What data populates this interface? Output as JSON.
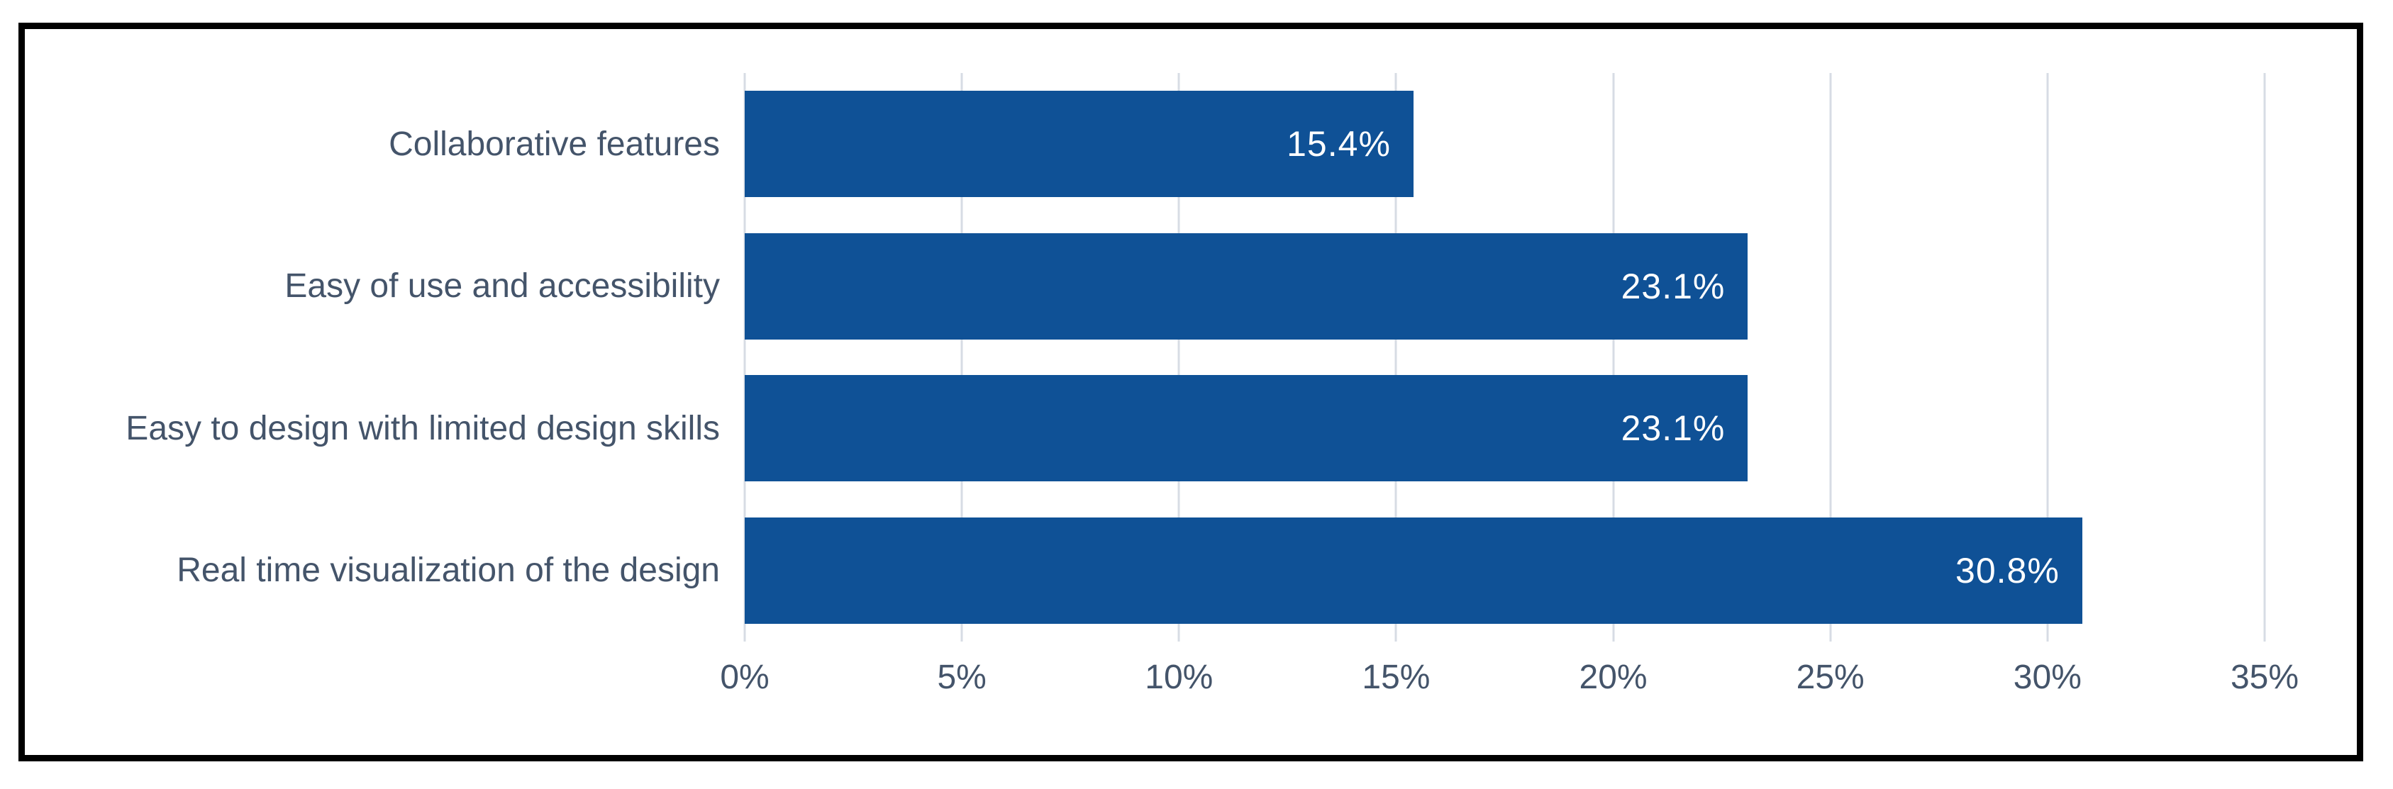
{
  "chart_data": {
    "type": "bar",
    "orientation": "horizontal",
    "title": "",
    "xlabel": "",
    "ylabel": "",
    "categories": [
      "Collaborative features",
      "Easy of use and accessibility",
      "Easy to design with limited design skills",
      "Real time visualization of the design"
    ],
    "values": [
      15.4,
      23.1,
      23.1,
      30.8
    ],
    "value_labels": [
      "15.4%",
      "23.1%",
      "23.1%",
      "30.8%"
    ],
    "xlim": [
      0,
      35
    ],
    "x_tick_values": [
      0,
      5,
      10,
      15,
      20,
      25,
      30,
      35
    ],
    "x_tick_labels": [
      "0%",
      "5%",
      "10%",
      "15%",
      "20%",
      "25%",
      "30%",
      "35%"
    ],
    "grid": true,
    "legend_position": "none",
    "colors": {
      "bar": "#0F5196",
      "gridline": "#D7DCE4",
      "axis_text": "#44546A",
      "category_text": "#44546A",
      "data_label_text": "#FFFFFF",
      "frame_border": "#000000",
      "background": "#FFFFFF"
    }
  }
}
